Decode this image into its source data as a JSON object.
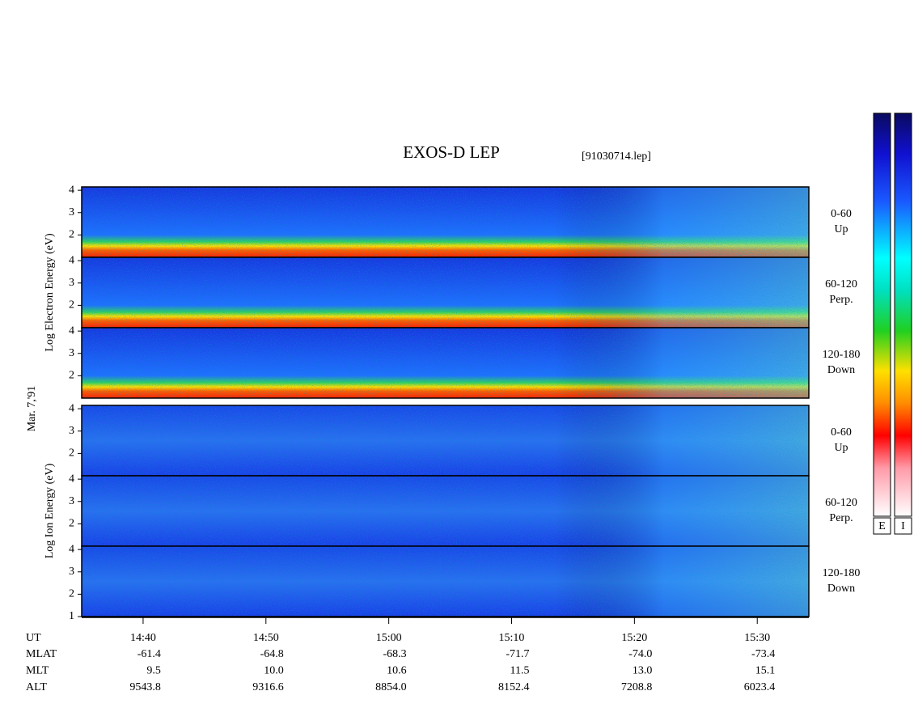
{
  "chart_data": {
    "type": "spectrogram",
    "title": "EXOS-D LEP",
    "subtitle": "[91030714.lep]",
    "date_label": "Mar. 7,'91",
    "groups": [
      {
        "label": "Log Electron Energy (eV)",
        "panels": [
          {
            "ylim": [
              1,
              4.15
            ],
            "yticks": [
              2,
              3,
              4
            ],
            "labels": [
              "0-60",
              "Up"
            ]
          },
          {
            "ylim": [
              1,
              4.15
            ],
            "yticks": [
              2,
              3,
              4
            ],
            "labels": [
              "60-120",
              "Perp."
            ]
          },
          {
            "ylim": [
              1,
              4.15
            ],
            "yticks": [
              2,
              3,
              4
            ],
            "labels": [
              "120-180",
              "Down"
            ]
          }
        ]
      },
      {
        "label": "Log Ion Energy (eV)",
        "panels": [
          {
            "ylim": [
              1,
              4.15
            ],
            "yticks": [
              2,
              3,
              4
            ],
            "labels": [
              "0-60",
              "Up"
            ]
          },
          {
            "ylim": [
              1,
              4.15
            ],
            "yticks": [
              2,
              3,
              4
            ],
            "labels": [
              "60-120",
              "Perp."
            ]
          },
          {
            "ylim": [
              1,
              4.15
            ],
            "yticks": [
              1,
              2,
              3,
              4
            ],
            "labels": [
              "120-180",
              "Down"
            ]
          }
        ]
      }
    ],
    "x_label": "UT",
    "xlim": [
      875,
      934.2
    ],
    "xticks": [
      {
        "value": 880,
        "label": "14:40"
      },
      {
        "value": 890,
        "label": "14:50"
      },
      {
        "value": 900,
        "label": "15:00"
      },
      {
        "value": 910,
        "label": "15:10"
      },
      {
        "value": 920,
        "label": "15:20"
      },
      {
        "value": 930,
        "label": "15:30"
      }
    ],
    "ephemeris": [
      {
        "name": "MLAT",
        "values": [
          "-61.4",
          "-64.8",
          "-68.3",
          "-71.7",
          "-74.0",
          "-73.4"
        ]
      },
      {
        "name": "MLT",
        "values": [
          "9.5",
          "10.0",
          "10.6",
          "11.5",
          "13.0",
          "15.1"
        ]
      },
      {
        "name": "ALT",
        "values": [
          "9543.8",
          "9316.6",
          "8854.0",
          "8152.4",
          "7208.8",
          "6023.4"
        ]
      }
    ],
    "colorbar_labels": [
      "E",
      "I"
    ]
  }
}
